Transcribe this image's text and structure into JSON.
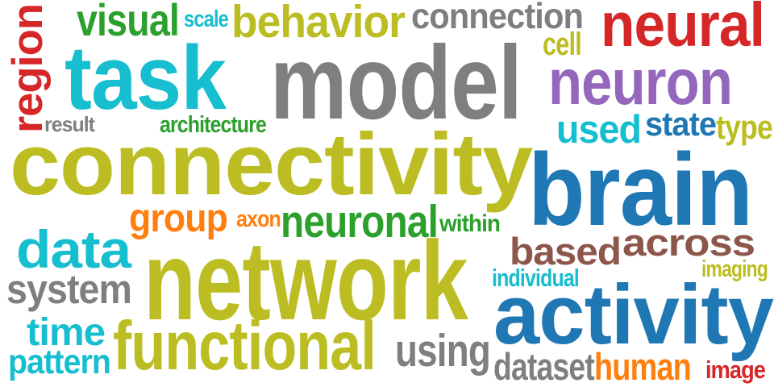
{
  "palette": {
    "olive": "#bcbd22",
    "cyan": "#17becf",
    "gray": "#7f7f7f",
    "red": "#d62728",
    "blue": "#1f77b4",
    "green": "#2ca02c",
    "orange": "#ff7f0e",
    "purple": "#9467bd",
    "brown": "#8c564b"
  },
  "words": [
    {
      "text": "visual",
      "color": "green"
    },
    {
      "text": "scale",
      "color": "cyan"
    },
    {
      "text": "behavior",
      "color": "olive"
    },
    {
      "text": "connection",
      "color": "gray"
    },
    {
      "text": "neural",
      "color": "red"
    },
    {
      "text": "cell",
      "color": "olive"
    },
    {
      "text": "task",
      "color": "cyan"
    },
    {
      "text": "model",
      "color": "gray"
    },
    {
      "text": "neuron",
      "color": "purple"
    },
    {
      "text": "region",
      "color": "red"
    },
    {
      "text": "result",
      "color": "gray"
    },
    {
      "text": "architecture",
      "color": "green"
    },
    {
      "text": "used",
      "color": "cyan"
    },
    {
      "text": "state",
      "color": "blue"
    },
    {
      "text": "type",
      "color": "olive"
    },
    {
      "text": "connectivity",
      "color": "olive"
    },
    {
      "text": "brain",
      "color": "blue"
    },
    {
      "text": "group",
      "color": "orange"
    },
    {
      "text": "axon",
      "color": "orange"
    },
    {
      "text": "neuronal",
      "color": "green"
    },
    {
      "text": "within",
      "color": "green"
    },
    {
      "text": "data",
      "color": "cyan"
    },
    {
      "text": "based",
      "color": "brown"
    },
    {
      "text": "across",
      "color": "brown"
    },
    {
      "text": "network",
      "color": "olive"
    },
    {
      "text": "imaging",
      "color": "olive"
    },
    {
      "text": "individual",
      "color": "cyan"
    },
    {
      "text": "system",
      "color": "gray"
    },
    {
      "text": "activity",
      "color": "blue"
    },
    {
      "text": "time",
      "color": "cyan"
    },
    {
      "text": "functional",
      "color": "olive"
    },
    {
      "text": "using",
      "color": "gray"
    },
    {
      "text": "pattern",
      "color": "cyan"
    },
    {
      "text": "dataset",
      "color": "gray"
    },
    {
      "text": "human",
      "color": "orange"
    },
    {
      "text": "image",
      "color": "red"
    }
  ]
}
